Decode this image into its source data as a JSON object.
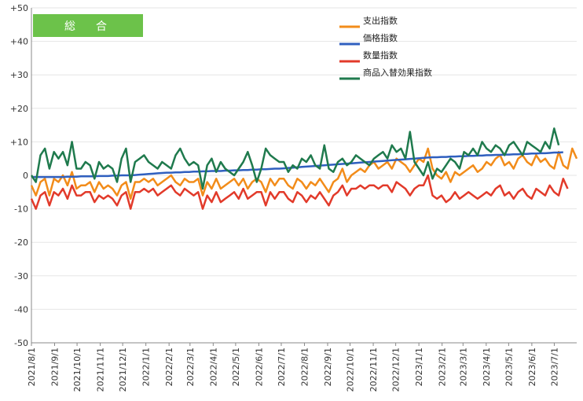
{
  "chart_data": {
    "type": "line",
    "title": "",
    "badge": "総　合",
    "xlabel": "",
    "ylabel": "",
    "ylim": [
      -50,
      50
    ],
    "yticks": [
      50,
      40,
      30,
      20,
      10,
      0,
      -10,
      -20,
      -30,
      -40,
      -50
    ],
    "ytick_labels": [
      "+50",
      "+40",
      "+30",
      "+20",
      "+10",
      "0",
      "-10",
      "-20",
      "-30",
      "-40",
      "-50"
    ],
    "grid": "horizontal",
    "legend_position": "top-right",
    "x_tick_labels": [
      "2021/8/1",
      "2021/9/1",
      "2021/10/1",
      "2021/11/1",
      "2021/12/1",
      "2022/1/1",
      "2022/2/1",
      "2022/3/1",
      "2022/4/1",
      "2022/5/1",
      "2022/6/1",
      "2022/7/1",
      "2022/8/1",
      "2022/9/1",
      "2022/10/1",
      "2022/11/1",
      "2022/12/1",
      "2023/1/1",
      "2023/2/1",
      "2023/3/1",
      "2023/4/1",
      "2023/5/1",
      "2023/6/1",
      "2023/7/1"
    ],
    "x_start": "2021/8/1",
    "x_end": "2023/7/31",
    "colors": {
      "badge": "#6cc24a",
      "axis": "#888888",
      "grid": "#e6e6e6"
    },
    "series": [
      {
        "name": "支出指数",
        "color": "#f28c1a",
        "values": [
          -3,
          -6,
          -2,
          -1,
          -6,
          -1,
          -2,
          0,
          -3,
          1,
          -4,
          -3,
          -3,
          -2,
          -5,
          -2,
          -4,
          -3,
          -4,
          -6,
          -3,
          -2,
          -7,
          -2,
          -2,
          -1,
          -2,
          -1,
          -3,
          -2,
          -1,
          0,
          -2,
          -3,
          -1,
          -2,
          -2,
          -1,
          -6,
          -2,
          -4,
          -1,
          -4,
          -3,
          -2,
          -1,
          -3,
          -1,
          -4,
          -2,
          -1,
          -2,
          -5,
          -1,
          -3,
          -1,
          -1,
          -3,
          -4,
          -1,
          -2,
          -4,
          -2,
          -3,
          -1,
          -3,
          -5,
          -2,
          -1,
          2,
          -2,
          0,
          1,
          2,
          1,
          3,
          4,
          2,
          3,
          4,
          2,
          5,
          4,
          3,
          1,
          3,
          5,
          4,
          8,
          2,
          0,
          -1,
          1,
          -2,
          1,
          0,
          1,
          2,
          3,
          1,
          2,
          4,
          3,
          5,
          6,
          3,
          4,
          2,
          5,
          6,
          4,
          3,
          6,
          4,
          5,
          3,
          2,
          7,
          3,
          2,
          8,
          5
        ]
      },
      {
        "name": "価格指数",
        "color": "#2f5fbf",
        "values": [
          -0.5,
          -0.5,
          -0.5,
          -0.5,
          -0.5,
          -0.5,
          -0.5,
          -0.5,
          -0.4,
          -0.4,
          -0.4,
          -0.3,
          -0.3,
          -0.3,
          -0.3,
          -0.2,
          -0.2,
          -0.2,
          -0.1,
          -0.1,
          0,
          0,
          0,
          0.1,
          0.2,
          0.3,
          0.4,
          0.5,
          0.6,
          0.7,
          0.8,
          0.8,
          0.9,
          0.9,
          1,
          1,
          1.1,
          1.1,
          1.2,
          1.2,
          1.3,
          1.3,
          1.3,
          1.4,
          1.4,
          1.5,
          1.5,
          1.6,
          1.6,
          1.7,
          1.7,
          1.8,
          1.8,
          1.9,
          2,
          2,
          2.1,
          2.2,
          2.3,
          2.4,
          2.5,
          2.6,
          2.7,
          2.8,
          2.9,
          3,
          3.1,
          3.2,
          3.3,
          3.4,
          3.5,
          3.6,
          3.7,
          3.8,
          3.9,
          4,
          4.1,
          4.2,
          4.3,
          4.4,
          4.5,
          4.6,
          4.7,
          4.8,
          4.9,
          5,
          5.1,
          5.2,
          5.3,
          5.4,
          5.4,
          5.5,
          5.5,
          5.6,
          5.6,
          5.7,
          5.7,
          5.8,
          5.8,
          5.9,
          5.9,
          6,
          6,
          6.1,
          6.1,
          6.2,
          6.2,
          6.3,
          6.3,
          6.4,
          6.4,
          6.5,
          6.5,
          6.6,
          6.6,
          6.7,
          6.8,
          6.8,
          6.9
        ]
      },
      {
        "name": "数量指数",
        "color": "#e23a2a",
        "values": [
          -7,
          -10,
          -6,
          -5,
          -9,
          -5,
          -6,
          -4,
          -7,
          -3,
          -6,
          -6,
          -5,
          -5,
          -8,
          -6,
          -7,
          -6,
          -7,
          -9,
          -6,
          -5,
          -10,
          -5,
          -5,
          -4,
          -5,
          -4,
          -6,
          -5,
          -4,
          -3,
          -5,
          -6,
          -4,
          -5,
          -6,
          -5,
          -10,
          -6,
          -8,
          -5,
          -8,
          -7,
          -6,
          -5,
          -7,
          -4,
          -7,
          -6,
          -5,
          -5,
          -9,
          -5,
          -7,
          -5,
          -5,
          -7,
          -8,
          -5,
          -6,
          -8,
          -6,
          -7,
          -5,
          -7,
          -9,
          -6,
          -5,
          -3,
          -6,
          -4,
          -4,
          -3,
          -4,
          -3,
          -3,
          -4,
          -3,
          -3,
          -5,
          -2,
          -3,
          -4,
          -6,
          -4,
          -3,
          -3,
          0,
          -6,
          -7,
          -6,
          -8,
          -7,
          -5,
          -7,
          -6,
          -5,
          -6,
          -7,
          -6,
          -5,
          -6,
          -4,
          -3,
          -6,
          -5,
          -7,
          -5,
          -4,
          -6,
          -7,
          -4,
          -5,
          -6,
          -3,
          -5,
          -6,
          -1,
          -4
        ]
      },
      {
        "name": "商品入替効果指数",
        "color": "#1f7a4d",
        "values": [
          0,
          -2,
          6,
          8,
          2,
          7,
          5,
          7,
          3,
          10,
          2,
          2,
          4,
          3,
          -1,
          4,
          2,
          3,
          2,
          -2,
          5,
          8,
          -2,
          4,
          5,
          6,
          4,
          3,
          2,
          4,
          3,
          2,
          6,
          8,
          5,
          3,
          4,
          3,
          -4,
          3,
          5,
          1,
          4,
          2,
          1,
          0,
          2,
          4,
          7,
          3,
          -2,
          2,
          8,
          6,
          5,
          4,
          4,
          1,
          3,
          2,
          5,
          4,
          6,
          3,
          2,
          9,
          2,
          1,
          4,
          5,
          3,
          4,
          6,
          5,
          4,
          3,
          5,
          6,
          7,
          5,
          9,
          7,
          8,
          5,
          13,
          4,
          2,
          0,
          4,
          -1,
          2,
          1,
          3,
          5,
          4,
          2,
          7,
          6,
          8,
          6,
          10,
          8,
          7,
          9,
          8,
          6,
          9,
          10,
          8,
          6,
          10,
          9,
          8,
          7,
          10,
          8,
          14,
          9
        ]
      }
    ]
  }
}
